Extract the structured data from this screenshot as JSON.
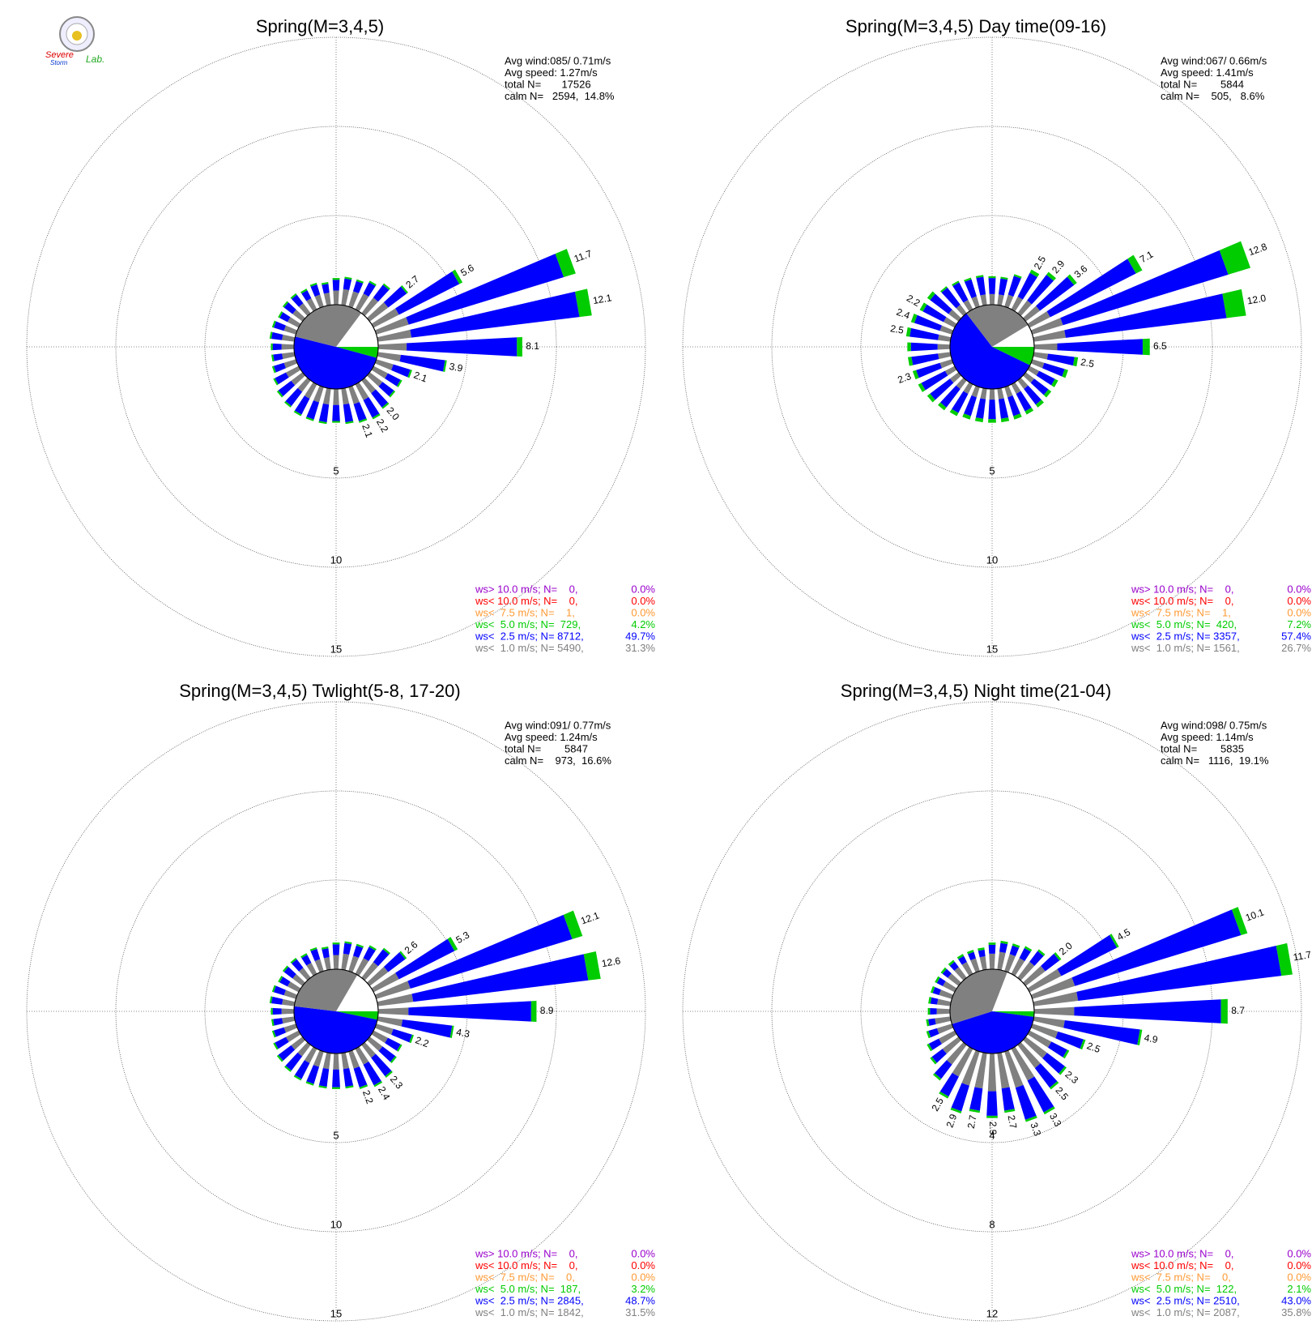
{
  "logo": {
    "line1": "Severe",
    "line2": "Storm",
    "line3": "Lab."
  },
  "chart_data": [
    {
      "type": "windrose",
      "title": "Spring(M=3,4,5)",
      "info": [
        "Avg wind:085/ 0.71m/s",
        "Avg speed: 1.27m/s",
        "total N=       17526",
        "calm N=   2594,  14.8%"
      ],
      "rlim": [
        0,
        15
      ],
      "rticks": [
        5,
        10,
        15
      ],
      "directions": [
        10,
        20,
        30,
        40,
        50,
        60,
        70,
        80,
        90,
        100,
        110,
        120,
        130,
        140,
        150,
        160,
        170,
        180,
        190,
        200,
        210,
        220,
        230,
        240,
        250,
        260,
        270,
        280,
        290,
        300,
        310,
        320,
        330,
        340,
        350,
        360
      ],
      "series": [
        {
          "color": "#808080",
          "values": [
            0.9,
            0.9,
            1.0,
            1.1,
            1.3,
            1.6,
            1.9,
            1.9,
            1.6,
            1.3,
            1.0,
            0.9,
            0.9,
            0.9,
            1.0,
            1.0,
            0.9,
            0.9,
            0.9,
            0.9,
            0.9,
            0.8,
            0.8,
            0.8,
            0.7,
            0.7,
            0.7,
            0.7,
            0.7,
            0.7,
            0.7,
            0.7,
            0.7,
            0.7,
            0.7,
            0.8
          ]
        },
        {
          "color": "#0000ff",
          "values": [
            0.6,
            0.6,
            0.7,
            0.9,
            1.3,
            3.8,
            9.1,
            9.5,
            6.2,
            2.5,
            1.0,
            0.8,
            0.8,
            1.0,
            1.1,
            1.0,
            1.0,
            0.9,
            1.0,
            1.0,
            1.0,
            1.0,
            0.9,
            0.7,
            0.6,
            0.5,
            0.5,
            0.6,
            0.6,
            0.5,
            0.6,
            0.6,
            0.5,
            0.6,
            0.5,
            0.6
          ]
        },
        {
          "color": "#00cc00",
          "values": [
            0.1,
            0.1,
            0.1,
            0.1,
            0.1,
            0.2,
            0.7,
            0.7,
            0.3,
            0.1,
            0.1,
            0.1,
            0.1,
            0.1,
            0.1,
            0.1,
            0.1,
            0.1,
            0.1,
            0.1,
            0.1,
            0.1,
            0.1,
            0.1,
            0.1,
            0.1,
            0.1,
            0.1,
            0.1,
            0.1,
            0.1,
            0.1,
            0.1,
            0.1,
            0.1,
            0.1
          ]
        }
      ],
      "bar_labels": [
        {
          "direction": 50,
          "text": "2.7"
        },
        {
          "direction": 60,
          "text": "5.6"
        },
        {
          "direction": 70,
          "text": "11.7"
        },
        {
          "direction": 80,
          "text": "12.1"
        },
        {
          "direction": 90,
          "text": "8.1"
        },
        {
          "direction": 100,
          "text": "3.9"
        },
        {
          "direction": 110,
          "text": "2.1"
        },
        {
          "direction": 140,
          "text": "2.0"
        },
        {
          "direction": 150,
          "text": "2.2"
        },
        {
          "direction": 160,
          "text": "2.1"
        }
      ],
      "legend": [
        {
          "text": "ws> 10.0 m/s; N=    0,",
          "color": "#9900cc",
          "percent": 0,
          "percent_label": "0.0%"
        },
        {
          "text": "ws< 10.0 m/s; N=    0,",
          "color": "#ff0000",
          "percent": 0,
          "percent_label": "0.0%"
        },
        {
          "text": "ws<  7.5 m/s; N=    1,",
          "color": "#ff9933",
          "percent": 0,
          "percent_label": "0.0%"
        },
        {
          "text": "ws<  5.0 m/s; N=  729,",
          "color": "#00cc00",
          "percent": 4.2,
          "percent_label": "4.2%"
        },
        {
          "text": "ws<  2.5 m/s; N= 8712,",
          "color": "#0000ff",
          "percent": 49.7,
          "percent_label": "49.7%"
        },
        {
          "text": "ws<  1.0 m/s; N= 5490,",
          "color": "#808080",
          "percent": 31.3,
          "percent_label": "31.3%"
        }
      ]
    },
    {
      "type": "windrose",
      "title": "Spring(M=3,4,5) Day time(09-16)",
      "info": [
        "Avg wind:067/ 0.66m/s",
        "Avg speed: 1.41m/s",
        "total N=        5844",
        "calm N=    505,   8.6%"
      ],
      "rlim": [
        0,
        15
      ],
      "rticks": [
        5,
        10,
        15
      ],
      "directions": [
        10,
        20,
        30,
        40,
        50,
        60,
        70,
        80,
        90,
        100,
        110,
        120,
        130,
        140,
        150,
        160,
        170,
        180,
        190,
        200,
        210,
        220,
        230,
        240,
        250,
        260,
        270,
        280,
        290,
        300,
        310,
        320,
        330,
        340,
        350,
        360
      ],
      "series": [
        {
          "color": "#808080",
          "values": [
            0.6,
            0.7,
            0.8,
            0.9,
            1.0,
            1.3,
            1.8,
            1.8,
            1.3,
            0.8,
            0.7,
            0.6,
            0.6,
            0.6,
            0.6,
            0.6,
            0.6,
            0.6,
            0.6,
            0.6,
            0.6,
            0.6,
            0.6,
            0.6,
            0.7,
            0.7,
            0.7,
            0.7,
            0.7,
            0.7,
            0.7,
            0.6,
            0.6,
            0.6,
            0.6,
            0.6
          ]
        },
        {
          "color": "#0000ff",
          "values": [
            0.9,
            1.1,
            1.5,
            1.8,
            2.4,
            5.4,
            9.7,
            9.1,
            4.8,
            1.5,
            1.2,
            1.0,
            1.0,
            1.1,
            1.1,
            1.1,
            1.1,
            1.1,
            1.1,
            1.1,
            1.2,
            1.3,
            1.4,
            1.5,
            1.4,
            1.5,
            1.5,
            1.6,
            1.5,
            1.3,
            1.3,
            1.2,
            1.1,
            1.0,
            1.0,
            0.9
          ]
        },
        {
          "color": "#00cc00",
          "values": [
            0.1,
            0.1,
            0.2,
            0.2,
            0.2,
            0.4,
            1.3,
            1.1,
            0.4,
            0.2,
            0.2,
            0.2,
            0.2,
            0.2,
            0.2,
            0.2,
            0.2,
            0.2,
            0.2,
            0.2,
            0.2,
            0.2,
            0.2,
            0.2,
            0.2,
            0.2,
            0.2,
            0.2,
            0.2,
            0.2,
            0.2,
            0.1,
            0.1,
            0.1,
            0.1,
            0.1
          ]
        }
      ],
      "bar_labels": [
        {
          "direction": 30,
          "text": "2.5"
        },
        {
          "direction": 40,
          "text": "2.9"
        },
        {
          "direction": 50,
          "text": "3.6"
        },
        {
          "direction": 60,
          "text": "7.1"
        },
        {
          "direction": 70,
          "text": "12.8"
        },
        {
          "direction": 80,
          "text": "12.0"
        },
        {
          "direction": 90,
          "text": "6.5"
        },
        {
          "direction": 100,
          "text": "2.5"
        },
        {
          "direction": 250,
          "text": "2.3"
        },
        {
          "direction": 280,
          "text": "2.5"
        },
        {
          "direction": 290,
          "text": "2.4"
        },
        {
          "direction": 300,
          "text": "2.2"
        }
      ],
      "legend": [
        {
          "text": "ws> 10.0 m/s; N=    0,",
          "color": "#9900cc",
          "percent": 0,
          "percent_label": "0.0%"
        },
        {
          "text": "ws< 10.0 m/s; N=    0,",
          "color": "#ff0000",
          "percent": 0,
          "percent_label": "0.0%"
        },
        {
          "text": "ws<  7.5 m/s; N=    1,",
          "color": "#ff9933",
          "percent": 0,
          "percent_label": "0.0%"
        },
        {
          "text": "ws<  5.0 m/s; N=  420,",
          "color": "#00cc00",
          "percent": 7.2,
          "percent_label": "7.2%"
        },
        {
          "text": "ws<  2.5 m/s; N= 3357,",
          "color": "#0000ff",
          "percent": 57.4,
          "percent_label": "57.4%"
        },
        {
          "text": "ws<  1.0 m/s; N= 1561,",
          "color": "#808080",
          "percent": 26.7,
          "percent_label": "26.7%"
        }
      ]
    },
    {
      "type": "windrose",
      "title": "Spring(M=3,4,5) Twlight(5-8, 17-20)",
      "info": [
        "Avg wind:091/ 0.77m/s",
        "Avg speed: 1.24m/s",
        "total N=        5847",
        "calm N=    973,  16.6%"
      ],
      "rlim": [
        0,
        15
      ],
      "rticks": [
        5,
        10,
        15
      ],
      "directions": [
        10,
        20,
        30,
        40,
        50,
        60,
        70,
        80,
        90,
        100,
        110,
        120,
        130,
        140,
        150,
        160,
        170,
        180,
        190,
        200,
        210,
        220,
        230,
        240,
        250,
        260,
        270,
        280,
        290,
        300,
        310,
        320,
        330,
        340,
        350,
        360
      ],
      "series": [
        {
          "color": "#808080",
          "values": [
            0.9,
            0.9,
            1.0,
            1.1,
            1.3,
            1.6,
            2.0,
            2.0,
            1.7,
            1.4,
            1.0,
            0.9,
            0.9,
            0.9,
            1.0,
            1.0,
            0.9,
            0.9,
            0.9,
            0.9,
            0.9,
            0.8,
            0.8,
            0.8,
            0.7,
            0.7,
            0.7,
            0.7,
            0.7,
            0.7,
            0.7,
            0.7,
            0.7,
            0.7,
            0.7,
            0.8
          ]
        },
        {
          "color": "#0000ff",
          "values": [
            0.6,
            0.6,
            0.7,
            0.9,
            1.2,
            3.5,
            9.5,
            9.9,
            6.9,
            2.8,
            1.1,
            0.8,
            0.9,
            1.3,
            1.3,
            1.1,
            1.0,
            1.0,
            1.0,
            1.0,
            1.0,
            1.0,
            0.9,
            0.7,
            0.6,
            0.5,
            0.5,
            0.6,
            0.6,
            0.5,
            0.6,
            0.6,
            0.5,
            0.6,
            0.5,
            0.6
          ]
        },
        {
          "color": "#00cc00",
          "values": [
            0.1,
            0.1,
            0.1,
            0.1,
            0.1,
            0.2,
            0.6,
            0.7,
            0.3,
            0.1,
            0.1,
            0.1,
            0.1,
            0.1,
            0.1,
            0.1,
            0.1,
            0.1,
            0.1,
            0.1,
            0.1,
            0.1,
            0.1,
            0.1,
            0.1,
            0.1,
            0.1,
            0.1,
            0.1,
            0.1,
            0.1,
            0.1,
            0.1,
            0.1,
            0.1,
            0.1
          ]
        }
      ],
      "bar_labels": [
        {
          "direction": 50,
          "text": "2.6"
        },
        {
          "direction": 60,
          "text": "5.3"
        },
        {
          "direction": 70,
          "text": "12.1"
        },
        {
          "direction": 80,
          "text": "12.6"
        },
        {
          "direction": 90,
          "text": "8.9"
        },
        {
          "direction": 100,
          "text": "4.3"
        },
        {
          "direction": 110,
          "text": "2.2"
        },
        {
          "direction": 140,
          "text": "2.3"
        },
        {
          "direction": 150,
          "text": "2.4"
        },
        {
          "direction": 160,
          "text": "2.2"
        }
      ],
      "legend": [
        {
          "text": "ws> 10.0 m/s; N=    0,",
          "color": "#9900cc",
          "percent": 0,
          "percent_label": "0.0%"
        },
        {
          "text": "ws< 10.0 m/s; N=    0,",
          "color": "#ff0000",
          "percent": 0,
          "percent_label": "0.0%"
        },
        {
          "text": "ws<  7.5 m/s; N=    0,",
          "color": "#ff9933",
          "percent": 0,
          "percent_label": "0.0%"
        },
        {
          "text": "ws<  5.0 m/s; N=  187,",
          "color": "#00cc00",
          "percent": 3.2,
          "percent_label": "3.2%"
        },
        {
          "text": "ws<  2.5 m/s; N= 2845,",
          "color": "#0000ff",
          "percent": 48.7,
          "percent_label": "48.7%"
        },
        {
          "text": "ws<  1.0 m/s; N= 1842,",
          "color": "#808080",
          "percent": 31.5,
          "percent_label": "31.5%"
        }
      ]
    },
    {
      "type": "windrose",
      "title": "Spring(M=3,4,5) Night time(21-04)",
      "info": [
        "Avg wind:098/ 0.75m/s",
        "Avg speed: 1.14m/s",
        "total N=        5835",
        "calm N=   1116,  19.1%"
      ],
      "rlim": [
        0,
        12
      ],
      "rticks": [
        4,
        8,
        12
      ],
      "directions": [
        10,
        20,
        30,
        40,
        50,
        60,
        70,
        80,
        90,
        100,
        110,
        120,
        130,
        140,
        150,
        160,
        170,
        180,
        190,
        200,
        210,
        220,
        230,
        240,
        250,
        260,
        270,
        280,
        290,
        300,
        310,
        320,
        330,
        340,
        350,
        360
      ],
      "series": [
        {
          "color": "#808080",
          "values": [
            0.8,
            0.8,
            0.8,
            0.9,
            1.1,
            1.6,
            2.0,
            2.0,
            1.8,
            1.4,
            1.2,
            1.1,
            1.2,
            1.3,
            1.6,
            1.7,
            1.6,
            1.7,
            1.6,
            1.6,
            1.4,
            1.1,
            0.9,
            0.8,
            0.7,
            0.7,
            0.6,
            0.6,
            0.6,
            0.6,
            0.6,
            0.6,
            0.6,
            0.6,
            0.6,
            0.7
          ]
        },
        {
          "color": "#0000ff",
          "values": [
            0.4,
            0.4,
            0.5,
            0.6,
            0.8,
            2.8,
            7.8,
            9.2,
            6.6,
            3.4,
            1.2,
            0.8,
            1.0,
            1.1,
            1.6,
            1.5,
            1.0,
            1.1,
            1.0,
            1.2,
            1.0,
            0.8,
            0.6,
            0.5,
            0.4,
            0.3,
            0.3,
            0.3,
            0.3,
            0.3,
            0.3,
            0.3,
            0.3,
            0.3,
            0.3,
            0.4
          ]
        },
        {
          "color": "#00cc00",
          "values": [
            0.1,
            0.1,
            0.1,
            0.1,
            0.1,
            0.1,
            0.3,
            0.5,
            0.3,
            0.1,
            0.1,
            0.1,
            0.1,
            0.1,
            0.1,
            0.1,
            0.1,
            0.1,
            0.1,
            0.1,
            0.1,
            0.1,
            0.1,
            0.1,
            0.1,
            0.1,
            0.1,
            0.1,
            0.1,
            0.1,
            0.1,
            0.1,
            0.1,
            0.1,
            0.1,
            0.1
          ]
        }
      ],
      "bar_labels": [
        {
          "direction": 50,
          "text": "2.0"
        },
        {
          "direction": 60,
          "text": "4.5"
        },
        {
          "direction": 70,
          "text": "10.1"
        },
        {
          "direction": 80,
          "text": "11.7"
        },
        {
          "direction": 90,
          "text": "8.7"
        },
        {
          "direction": 100,
          "text": "4.9"
        },
        {
          "direction": 110,
          "text": "2.5"
        },
        {
          "direction": 130,
          "text": "2.3"
        },
        {
          "direction": 140,
          "text": "2.5"
        },
        {
          "direction": 150,
          "text": "3.3"
        },
        {
          "direction": 160,
          "text": "3.3"
        },
        {
          "direction": 170,
          "text": "2.7"
        },
        {
          "direction": 180,
          "text": "2.9"
        },
        {
          "direction": 190,
          "text": "2.7"
        },
        {
          "direction": 200,
          "text": "2.9"
        },
        {
          "direction": 210,
          "text": "2.5"
        }
      ],
      "legend": [
        {
          "text": "ws> 10.0 m/s; N=    0,",
          "color": "#9900cc",
          "percent": 0,
          "percent_label": "0.0%"
        },
        {
          "text": "ws< 10.0 m/s; N=    0,",
          "color": "#ff0000",
          "percent": 0,
          "percent_label": "0.0%"
        },
        {
          "text": "ws<  7.5 m/s; N=    0,",
          "color": "#ff9933",
          "percent": 0,
          "percent_label": "0.0%"
        },
        {
          "text": "ws<  5.0 m/s; N=  122,",
          "color": "#00cc00",
          "percent": 2.1,
          "percent_label": "2.1%"
        },
        {
          "text": "ws<  2.5 m/s; N= 2510,",
          "color": "#0000ff",
          "percent": 43,
          "percent_label": "43.0%"
        },
        {
          "text": "ws<  1.0 m/s; N= 2087,",
          "color": "#808080",
          "percent": 35.8,
          "percent_label": "35.8%"
        }
      ]
    }
  ]
}
